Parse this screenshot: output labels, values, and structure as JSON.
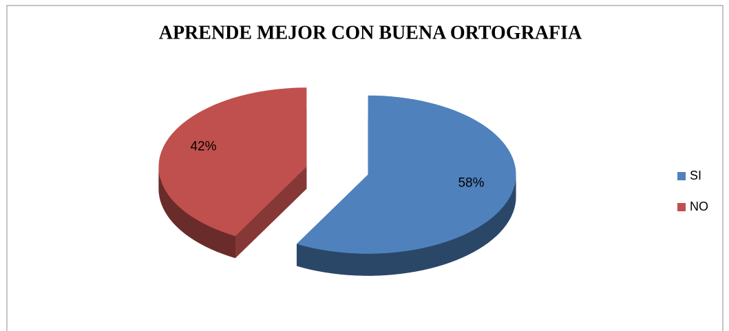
{
  "chart_data": {
    "type": "pie",
    "title": "APRENDE MEJOR CON BUENA ORTOGRAFIA",
    "categories": [
      "SI",
      "NO"
    ],
    "values": [
      58,
      42
    ],
    "value_labels": [
      "58%",
      "42%"
    ],
    "colors": [
      "#4f81bd",
      "#c0504d"
    ],
    "legend": "right"
  }
}
